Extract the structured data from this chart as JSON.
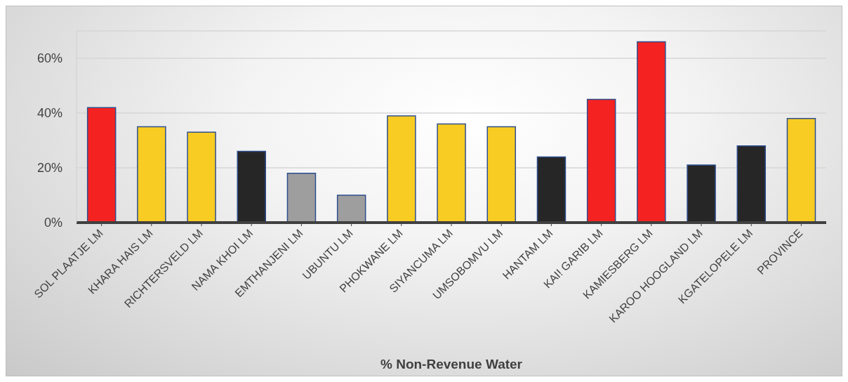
{
  "chart_data": {
    "type": "bar",
    "xlabel": "% Non-Revenue Water",
    "categories": [
      "SOL PLAATJE LM",
      "KHARA HAIS LM",
      "RICHTERSVELD LM",
      "NAMA KHOI LM",
      "EMTHANJENI LM",
      "UBUNTU LM",
      "PHOKWANE LM",
      "SIYANCUMA LM",
      "UMSOBOMVU LM",
      "HANTAM LM",
      "KAI! GARIB LM",
      "KAMIESBERG LM",
      "KAROO HOOGLAND LM",
      "KGATELOPELE LM",
      "PROVINCE"
    ],
    "values": [
      42,
      35,
      33,
      26,
      18,
      10,
      39,
      36,
      35,
      24,
      45,
      66,
      21,
      28,
      38
    ],
    "colors": [
      "#f52222",
      "#f8cc22",
      "#f8cc22",
      "#262626",
      "#9e9e9e",
      "#9e9e9e",
      "#f8cc22",
      "#f8cc22",
      "#f8cc22",
      "#262626",
      "#f52222",
      "#f52222",
      "#262626",
      "#262626",
      "#f8cc22"
    ],
    "ylim": [
      0,
      70
    ],
    "yticks": [
      {
        "value": 0,
        "label": "0%"
      },
      {
        "value": 20,
        "label": "20%"
      },
      {
        "value": 40,
        "label": "40%"
      },
      {
        "value": 60,
        "label": "60%"
      }
    ],
    "grid": "y"
  }
}
